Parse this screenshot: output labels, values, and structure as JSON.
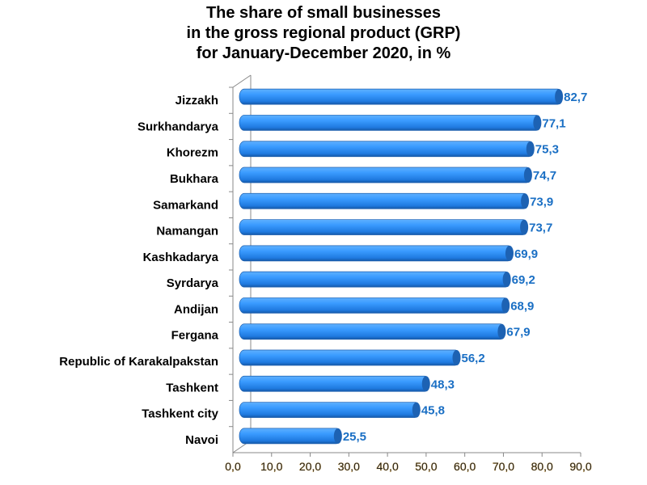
{
  "chart_data": {
    "type": "bar",
    "orientation": "horizontal",
    "title": [
      "The share of small businesses",
      "in the gross regional product (GRP)",
      "for January-December 2020, in %"
    ],
    "categories": [
      "Jizzakh",
      "Surkhandarya",
      "Khorezm",
      "Bukhara",
      "Samarkand",
      "Namangan",
      "Kashkadarya",
      "Syrdarya",
      "Andijan",
      "Fergana",
      "Republic of Karakalpakstan",
      "Tashkent",
      "Tashkent city",
      "Navoi"
    ],
    "values": [
      82.7,
      77.1,
      75.3,
      74.7,
      73.9,
      73.7,
      69.9,
      69.2,
      68.9,
      67.9,
      56.2,
      48.3,
      45.8,
      25.5
    ],
    "value_labels": [
      "82,7",
      "77,1",
      "75,3",
      "74,7",
      "73,9",
      "73,7",
      "69,9",
      "69,2",
      "68,9",
      "67,9",
      "56,2",
      "48,3",
      "45,8",
      "25,5"
    ],
    "xlim": [
      0,
      90
    ],
    "xticks": [
      "0,0",
      "10,0",
      "20,0",
      "30,0",
      "40,0",
      "50,0",
      "60,0",
      "70,0",
      "80,0",
      "90,0"
    ],
    "xlabel": "",
    "ylabel": "",
    "grid": false,
    "bar_color": "#2f8cef",
    "label_color": "#1a6fc4"
  }
}
